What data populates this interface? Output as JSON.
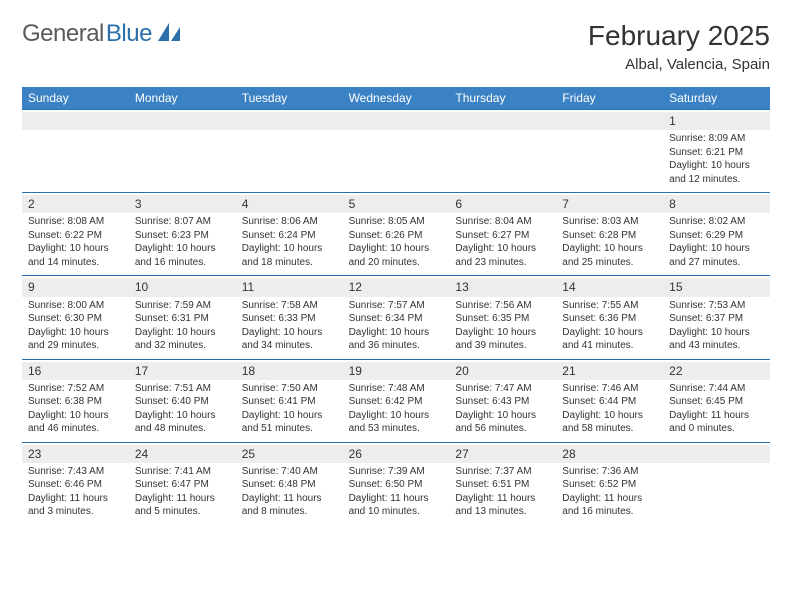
{
  "logo": {
    "text_gray": "General",
    "text_blue": "Blue"
  },
  "title": "February 2025",
  "location": "Albal, Valencia, Spain",
  "colors": {
    "header_bg": "#3b82c4",
    "border": "#2b6fab",
    "daynum_bg": "#ededed",
    "text": "#333333",
    "white": "#ffffff"
  },
  "fonts": {
    "family": "Arial, Helvetica, sans-serif",
    "title_size_pt": 21,
    "cell_size_pt": 7.5
  },
  "days_of_week": [
    "Sunday",
    "Monday",
    "Tuesday",
    "Wednesday",
    "Thursday",
    "Friday",
    "Saturday"
  ],
  "weeks": [
    [
      {
        "blank": true
      },
      {
        "blank": true
      },
      {
        "blank": true
      },
      {
        "blank": true
      },
      {
        "blank": true
      },
      {
        "blank": true
      },
      {
        "day": "1",
        "sunrise": "Sunrise: 8:09 AM",
        "sunset": "Sunset: 6:21 PM",
        "daylight": "Daylight: 10 hours and 12 minutes."
      }
    ],
    [
      {
        "day": "2",
        "sunrise": "Sunrise: 8:08 AM",
        "sunset": "Sunset: 6:22 PM",
        "daylight": "Daylight: 10 hours and 14 minutes."
      },
      {
        "day": "3",
        "sunrise": "Sunrise: 8:07 AM",
        "sunset": "Sunset: 6:23 PM",
        "daylight": "Daylight: 10 hours and 16 minutes."
      },
      {
        "day": "4",
        "sunrise": "Sunrise: 8:06 AM",
        "sunset": "Sunset: 6:24 PM",
        "daylight": "Daylight: 10 hours and 18 minutes."
      },
      {
        "day": "5",
        "sunrise": "Sunrise: 8:05 AM",
        "sunset": "Sunset: 6:26 PM",
        "daylight": "Daylight: 10 hours and 20 minutes."
      },
      {
        "day": "6",
        "sunrise": "Sunrise: 8:04 AM",
        "sunset": "Sunset: 6:27 PM",
        "daylight": "Daylight: 10 hours and 23 minutes."
      },
      {
        "day": "7",
        "sunrise": "Sunrise: 8:03 AM",
        "sunset": "Sunset: 6:28 PM",
        "daylight": "Daylight: 10 hours and 25 minutes."
      },
      {
        "day": "8",
        "sunrise": "Sunrise: 8:02 AM",
        "sunset": "Sunset: 6:29 PM",
        "daylight": "Daylight: 10 hours and 27 minutes."
      }
    ],
    [
      {
        "day": "9",
        "sunrise": "Sunrise: 8:00 AM",
        "sunset": "Sunset: 6:30 PM",
        "daylight": "Daylight: 10 hours and 29 minutes."
      },
      {
        "day": "10",
        "sunrise": "Sunrise: 7:59 AM",
        "sunset": "Sunset: 6:31 PM",
        "daylight": "Daylight: 10 hours and 32 minutes."
      },
      {
        "day": "11",
        "sunrise": "Sunrise: 7:58 AM",
        "sunset": "Sunset: 6:33 PM",
        "daylight": "Daylight: 10 hours and 34 minutes."
      },
      {
        "day": "12",
        "sunrise": "Sunrise: 7:57 AM",
        "sunset": "Sunset: 6:34 PM",
        "daylight": "Daylight: 10 hours and 36 minutes."
      },
      {
        "day": "13",
        "sunrise": "Sunrise: 7:56 AM",
        "sunset": "Sunset: 6:35 PM",
        "daylight": "Daylight: 10 hours and 39 minutes."
      },
      {
        "day": "14",
        "sunrise": "Sunrise: 7:55 AM",
        "sunset": "Sunset: 6:36 PM",
        "daylight": "Daylight: 10 hours and 41 minutes."
      },
      {
        "day": "15",
        "sunrise": "Sunrise: 7:53 AM",
        "sunset": "Sunset: 6:37 PM",
        "daylight": "Daylight: 10 hours and 43 minutes."
      }
    ],
    [
      {
        "day": "16",
        "sunrise": "Sunrise: 7:52 AM",
        "sunset": "Sunset: 6:38 PM",
        "daylight": "Daylight: 10 hours and 46 minutes."
      },
      {
        "day": "17",
        "sunrise": "Sunrise: 7:51 AM",
        "sunset": "Sunset: 6:40 PM",
        "daylight": "Daylight: 10 hours and 48 minutes."
      },
      {
        "day": "18",
        "sunrise": "Sunrise: 7:50 AM",
        "sunset": "Sunset: 6:41 PM",
        "daylight": "Daylight: 10 hours and 51 minutes."
      },
      {
        "day": "19",
        "sunrise": "Sunrise: 7:48 AM",
        "sunset": "Sunset: 6:42 PM",
        "daylight": "Daylight: 10 hours and 53 minutes."
      },
      {
        "day": "20",
        "sunrise": "Sunrise: 7:47 AM",
        "sunset": "Sunset: 6:43 PM",
        "daylight": "Daylight: 10 hours and 56 minutes."
      },
      {
        "day": "21",
        "sunrise": "Sunrise: 7:46 AM",
        "sunset": "Sunset: 6:44 PM",
        "daylight": "Daylight: 10 hours and 58 minutes."
      },
      {
        "day": "22",
        "sunrise": "Sunrise: 7:44 AM",
        "sunset": "Sunset: 6:45 PM",
        "daylight": "Daylight: 11 hours and 0 minutes."
      }
    ],
    [
      {
        "day": "23",
        "sunrise": "Sunrise: 7:43 AM",
        "sunset": "Sunset: 6:46 PM",
        "daylight": "Daylight: 11 hours and 3 minutes."
      },
      {
        "day": "24",
        "sunrise": "Sunrise: 7:41 AM",
        "sunset": "Sunset: 6:47 PM",
        "daylight": "Daylight: 11 hours and 5 minutes."
      },
      {
        "day": "25",
        "sunrise": "Sunrise: 7:40 AM",
        "sunset": "Sunset: 6:48 PM",
        "daylight": "Daylight: 11 hours and 8 minutes."
      },
      {
        "day": "26",
        "sunrise": "Sunrise: 7:39 AM",
        "sunset": "Sunset: 6:50 PM",
        "daylight": "Daylight: 11 hours and 10 minutes."
      },
      {
        "day": "27",
        "sunrise": "Sunrise: 7:37 AM",
        "sunset": "Sunset: 6:51 PM",
        "daylight": "Daylight: 11 hours and 13 minutes."
      },
      {
        "day": "28",
        "sunrise": "Sunrise: 7:36 AM",
        "sunset": "Sunset: 6:52 PM",
        "daylight": "Daylight: 11 hours and 16 minutes."
      },
      {
        "blank": true
      }
    ]
  ]
}
